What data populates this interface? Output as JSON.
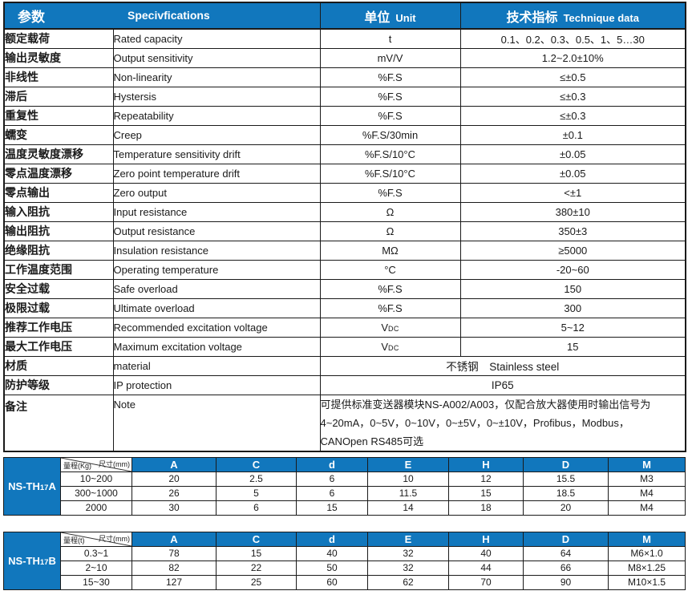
{
  "colors": {
    "accent": "#1177bd",
    "border": "#1a1a1a",
    "text": "#1a1a1a",
    "header_text": "#ffffff"
  },
  "main_table": {
    "header": {
      "param_cn": "参数",
      "param_en": "Specivfications",
      "unit_cn": "单位",
      "unit_en": "Unit",
      "tech_cn": "技术指标",
      "tech_en": "Technique data"
    },
    "rows": [
      {
        "cn": "额定载荷",
        "en": "Rated capacity",
        "unit": "t",
        "value": "0.1、0.2、0.3、0.5、1、5…30"
      },
      {
        "cn": "输出灵敏度",
        "en": "Output sensitivity",
        "unit": "mV/V",
        "value": "1.2~2.0±10%"
      },
      {
        "cn": "非线性",
        "en": "Non-linearity",
        "unit": "%F.S",
        "value": "≤±0.5"
      },
      {
        "cn": "滞后",
        "en": "Hystersis",
        "unit": "%F.S",
        "value": "≤±0.3"
      },
      {
        "cn": "重复性",
        "en": "Repeatability",
        "unit": "%F.S",
        "value": "≤±0.3"
      },
      {
        "cn": "蠕变",
        "en": "Creep",
        "unit": "%F.S/30min",
        "value": "±0.1"
      },
      {
        "cn": "温度灵敏度漂移",
        "en": "Temperature sensitivity drift",
        "unit": "%F.S/10°C",
        "value": "±0.05"
      },
      {
        "cn": "零点温度漂移",
        "en": "Zero point temperature drift",
        "unit": "%F.S/10°C",
        "value": "±0.05"
      },
      {
        "cn": "零点输出",
        "en": "Zero output",
        "unit": "%F.S",
        "value": "<±1"
      },
      {
        "cn": "输入阻抗",
        "en": "Input resistance",
        "unit": "Ω",
        "value": "380±10"
      },
      {
        "cn": "输出阻抗",
        "en": "Output resistance",
        "unit": "Ω",
        "value": "350±3"
      },
      {
        "cn": "绝缘阻抗",
        "en": "Insulation resistance",
        "unit": "MΩ",
        "value": "≥5000"
      },
      {
        "cn": "工作温度范围",
        "en": "Operating temperature",
        "unit": "°C",
        "value": "-20~60"
      },
      {
        "cn": "安全过载",
        "en": "Safe overload",
        "unit": "%F.S",
        "value": "150"
      },
      {
        "cn": "极限过载",
        "en": "Ultimate overload",
        "unit": "%F.S",
        "value": "300"
      },
      {
        "cn": "推荐工作电压",
        "en": "Recommended excitation voltage",
        "unit": "VDC",
        "value": "5~12"
      },
      {
        "cn": "最大工作电压",
        "en": "Maximum excitation voltage",
        "unit": "VDC",
        "value": "15"
      },
      {
        "cn": "材质",
        "en": "material",
        "merged": true,
        "value": "不锈钢　Stainless steel"
      },
      {
        "cn": "防护等级",
        "en": "IP protection",
        "merged": true,
        "value": "IP65"
      },
      {
        "cn": "备注",
        "en": "Note",
        "merged": true,
        "top": true,
        "lines": [
          "可提供标准变送器模块NS-A002/A003，仅配合放大器使用时输出信号为",
          "4~20mA，0~5V，0~10V，0~±5V，0~±10V，Profibus，Modbus，",
          "CANOpen RS485可选"
        ]
      }
    ]
  },
  "dim_tables": [
    {
      "model": {
        "prefix": "NS-TH",
        "sub": "17",
        "suffix": "A"
      },
      "corner": {
        "top": "尺寸(mm)",
        "bottom": "量程(Kg)"
      },
      "columns": [
        "A",
        "C",
        "d",
        "E",
        "H",
        "D",
        "M"
      ],
      "rows": [
        {
          "range": "10~200",
          "values": [
            "20",
            "2.5",
            "6",
            "10",
            "12",
            "15.5",
            "M3"
          ]
        },
        {
          "range": "300~1000",
          "values": [
            "26",
            "5",
            "6",
            "11.5",
            "15",
            "18.5",
            "M4"
          ]
        },
        {
          "range": "2000",
          "values": [
            "30",
            "6",
            "15",
            "14",
            "18",
            "20",
            "M4"
          ]
        }
      ]
    },
    {
      "model": {
        "prefix": "NS-TH",
        "sub": "17",
        "suffix": "B"
      },
      "corner": {
        "top": "尺寸(mm)",
        "bottom": "量程(t)"
      },
      "columns": [
        "A",
        "C",
        "d",
        "E",
        "H",
        "D",
        "M"
      ],
      "rows": [
        {
          "range": "0.3~1",
          "values": [
            "78",
            "15",
            "40",
            "32",
            "40",
            "64",
            "M6×1.0"
          ]
        },
        {
          "range": "2~10",
          "values": [
            "82",
            "22",
            "50",
            "32",
            "44",
            "66",
            "M8×1.25"
          ]
        },
        {
          "range": "15~30",
          "values": [
            "127",
            "25",
            "60",
            "62",
            "70",
            "90",
            "M10×1.5"
          ]
        }
      ]
    }
  ]
}
